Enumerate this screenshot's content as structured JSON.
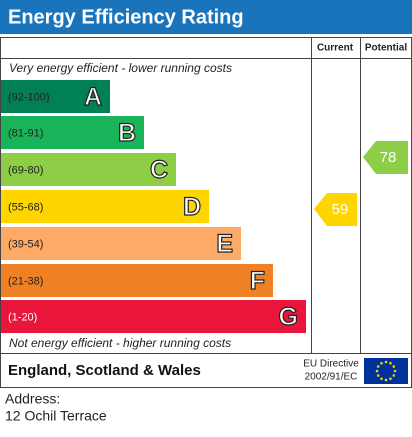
{
  "header": {
    "title": "Energy Efficiency Rating"
  },
  "columns": {
    "current": "Current",
    "potential": "Potential"
  },
  "top_note": "Very energy efficient - lower running costs",
  "bottom_note": "Not energy efficient - higher running costs",
  "bands": [
    {
      "range": "(92-100)",
      "letter": "A",
      "color": "#008054"
    },
    {
      "range": "(81-91)",
      "letter": "B",
      "color": "#19b459"
    },
    {
      "range": "(69-80)",
      "letter": "C",
      "color": "#8dce46"
    },
    {
      "range": "(55-68)",
      "letter": "D",
      "color": "#ffd500"
    },
    {
      "range": "(39-54)",
      "letter": "E",
      "color": "#fcaa65"
    },
    {
      "range": "(21-38)",
      "letter": "F",
      "color": "#ef8023"
    },
    {
      "range": "(1-20)",
      "letter": "G",
      "color": "#e9153b"
    }
  ],
  "current": {
    "value": 59,
    "color": "#ffd500"
  },
  "potential": {
    "value": 78,
    "color": "#8dce46"
  },
  "footer": {
    "region": "England, Scotland & Wales",
    "directive": [
      "EU Directive",
      "2002/91/EC"
    ]
  },
  "address": {
    "label": "Address:",
    "value": "12 Ochil Terrace"
  }
}
